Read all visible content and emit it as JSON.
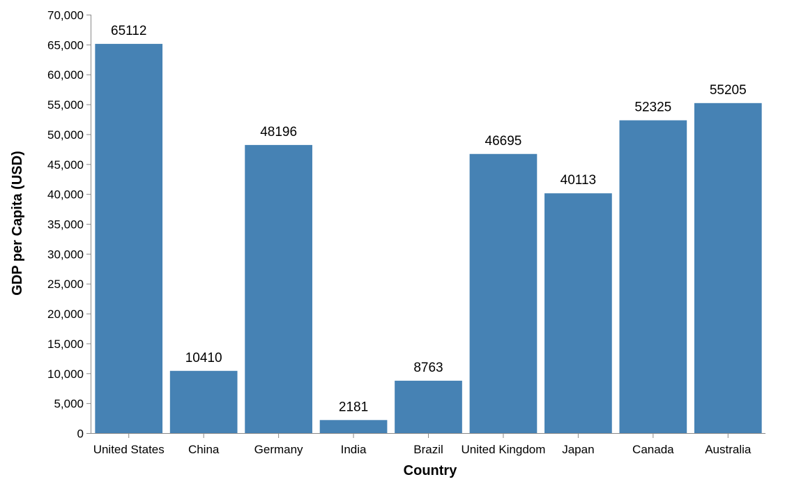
{
  "chart_data": {
    "type": "bar",
    "categories": [
      "United States",
      "China",
      "Germany",
      "India",
      "Brazil",
      "United Kingdom",
      "Japan",
      "Canada",
      "Australia"
    ],
    "values": [
      65112,
      10410,
      48196,
      2181,
      8763,
      46695,
      40113,
      52325,
      55205
    ],
    "xlabel": "Country",
    "ylabel": "GDP per Capita (USD)",
    "ylim": [
      0,
      70000
    ],
    "yticks": [
      0,
      5000,
      10000,
      15000,
      20000,
      25000,
      30000,
      35000,
      40000,
      45000,
      50000,
      55000,
      60000,
      65000,
      70000
    ],
    "ytick_labels": [
      "0",
      "5,000",
      "10,000",
      "15,000",
      "20,000",
      "25,000",
      "30,000",
      "35,000",
      "40,000",
      "45,000",
      "50,000",
      "55,000",
      "60,000",
      "65,000",
      "70,000"
    ],
    "data_labels": [
      "65112",
      "10410",
      "48196",
      "2181",
      "8763",
      "46695",
      "40113",
      "52325",
      "55205"
    ],
    "bar_color": "#4682b4",
    "grid": false,
    "legend": "none"
  }
}
